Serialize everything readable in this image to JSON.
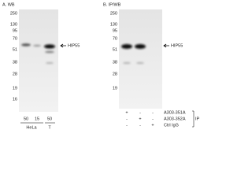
{
  "panels": [
    {
      "title": "A. WB",
      "markers": [
        "250",
        "130",
        "95",
        "70",
        "51",
        "38",
        "28",
        "19",
        "16"
      ],
      "band_label": "HIP55",
      "lane_amounts": [
        "50",
        "15",
        "50"
      ],
      "cell_lines": [
        "HeLa",
        "T"
      ]
    },
    {
      "title": "B. IP/WB",
      "markers": [
        "250",
        "130",
        "95",
        "70",
        "51",
        "38",
        "28",
        "19"
      ],
      "band_label": "HIP55",
      "rows": [
        {
          "label": "A303-351A",
          "signs": [
            "+",
            "-",
            "-"
          ]
        },
        {
          "label": "A303-352A",
          "signs": [
            "-",
            "+",
            "-"
          ]
        },
        {
          "label": "Ctrl IgG",
          "signs": [
            "-",
            "-",
            "+"
          ]
        }
      ],
      "ip_label": "IP"
    }
  ]
}
